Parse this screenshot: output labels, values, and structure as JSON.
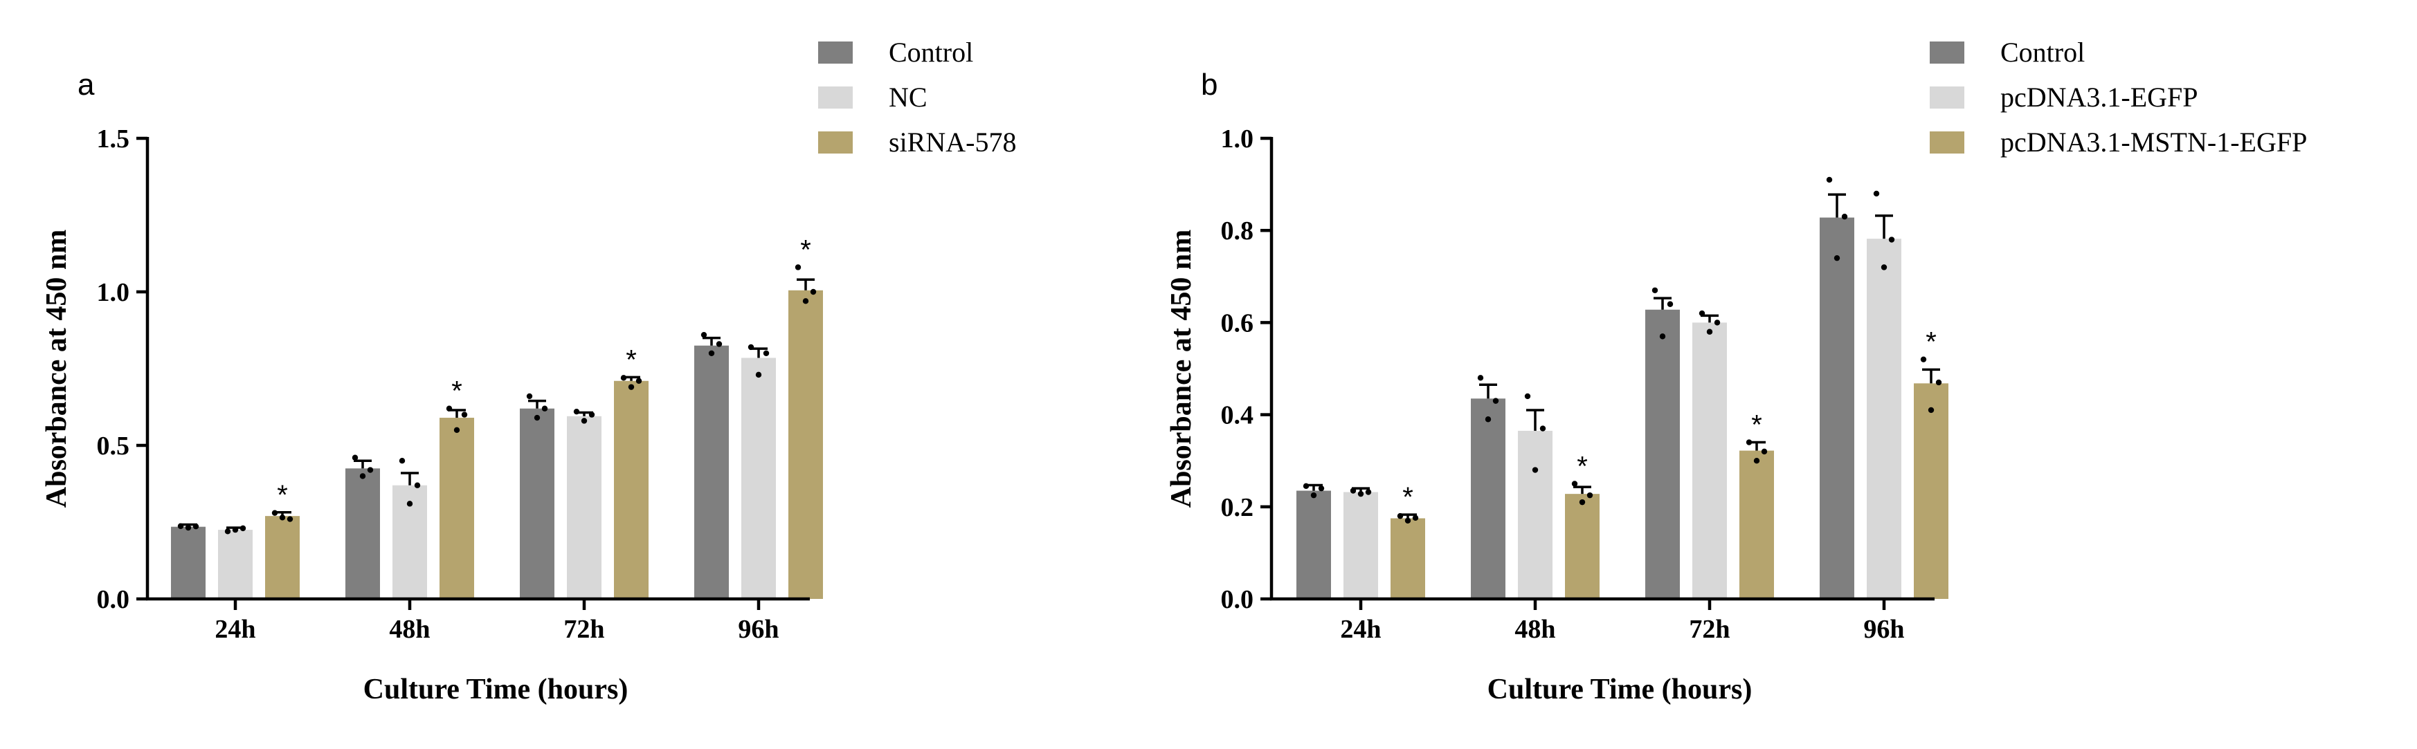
{
  "chart_data": [
    {
      "panel": "a",
      "type": "bar",
      "xlabel": "Culture Time (hours)",
      "ylabel": "Absorbance at 450 nm",
      "ylim": [
        0,
        1.5
      ],
      "yticks": [
        0.0,
        0.5,
        1.0,
        1.5
      ],
      "ytick_labels": [
        "0.0",
        "0.5",
        "1.0",
        "1.5"
      ],
      "categories": [
        "24h",
        "48h",
        "72h",
        "96h"
      ],
      "legend_position": "top-right",
      "series": [
        {
          "name": "Control",
          "color": "#7f7f7f",
          "values": [
            0.235,
            0.425,
            0.62,
            0.825
          ],
          "errors": [
            0.007,
            0.025,
            0.025,
            0.025
          ],
          "points": [
            [
              0.237,
              0.232,
              0.236
            ],
            [
              0.46,
              0.4,
              0.42
            ],
            [
              0.66,
              0.59,
              0.62
            ],
            [
              0.86,
              0.8,
              0.83
            ]
          ],
          "significant": [
            false,
            false,
            false,
            false
          ]
        },
        {
          "name": "NC",
          "color": "#d8d8d8",
          "values": [
            0.225,
            0.37,
            0.595,
            0.785
          ],
          "errors": [
            0.007,
            0.04,
            0.012,
            0.03
          ],
          "points": [
            [
              0.22,
              0.225,
              0.23
            ],
            [
              0.45,
              0.31,
              0.37
            ],
            [
              0.61,
              0.58,
              0.6
            ],
            [
              0.82,
              0.73,
              0.8
            ]
          ],
          "significant": [
            false,
            false,
            false,
            false
          ]
        },
        {
          "name": "siRNA-578",
          "color": "#b5a46e",
          "values": [
            0.27,
            0.59,
            0.71,
            1.005
          ],
          "errors": [
            0.012,
            0.025,
            0.012,
            0.035
          ],
          "points": [
            [
              0.28,
              0.265,
              0.26
            ],
            [
              0.62,
              0.55,
              0.6
            ],
            [
              0.72,
              0.69,
              0.71
            ],
            [
              1.08,
              0.97,
              1.0
            ]
          ],
          "significant": [
            true,
            true,
            true,
            true
          ]
        }
      ]
    },
    {
      "panel": "b",
      "type": "bar",
      "xlabel": "Culture Time (hours)",
      "ylabel": "Absorbance at 450 nm",
      "ylim": [
        0,
        1.0
      ],
      "yticks": [
        0.0,
        0.2,
        0.4,
        0.6,
        0.8,
        1.0
      ],
      "ytick_labels": [
        "0.0",
        "0.2",
        "0.4",
        "0.6",
        "0.8",
        "1.0"
      ],
      "categories": [
        "24h",
        "48h",
        "72h",
        "96h"
      ],
      "legend_position": "top-right",
      "series": [
        {
          "name": "Control",
          "color": "#7f7f7f",
          "values": [
            0.235,
            0.435,
            0.628,
            0.828
          ],
          "errors": [
            0.012,
            0.03,
            0.025,
            0.05
          ],
          "points": [
            [
              0.245,
              0.225,
              0.24
            ],
            [
              0.48,
              0.39,
              0.43
            ],
            [
              0.67,
              0.57,
              0.64
            ],
            [
              0.91,
              0.74,
              0.83
            ]
          ],
          "significant": [
            false,
            false,
            false,
            false
          ]
        },
        {
          "name": "pcDNA3.1-EGFP",
          "color": "#d8d8d8",
          "values": [
            0.232,
            0.365,
            0.6,
            0.782
          ],
          "errors": [
            0.008,
            0.045,
            0.015,
            0.05
          ],
          "points": [
            [
              0.235,
              0.228,
              0.232
            ],
            [
              0.44,
              0.28,
              0.37
            ],
            [
              0.62,
              0.58,
              0.6
            ],
            [
              0.88,
              0.72,
              0.78
            ]
          ],
          "significant": [
            false,
            false,
            false,
            false
          ]
        },
        {
          "name": "pcDNA3.1-MSTN-1-EGFP",
          "color": "#b5a46e",
          "values": [
            0.175,
            0.228,
            0.322,
            0.468
          ],
          "errors": [
            0.008,
            0.015,
            0.018,
            0.03
          ],
          "points": [
            [
              0.18,
              0.17,
              0.176
            ],
            [
              0.25,
              0.21,
              0.225
            ],
            [
              0.34,
              0.3,
              0.32
            ],
            [
              0.52,
              0.41,
              0.47
            ]
          ],
          "significant": [
            true,
            true,
            true,
            true
          ]
        }
      ]
    }
  ]
}
